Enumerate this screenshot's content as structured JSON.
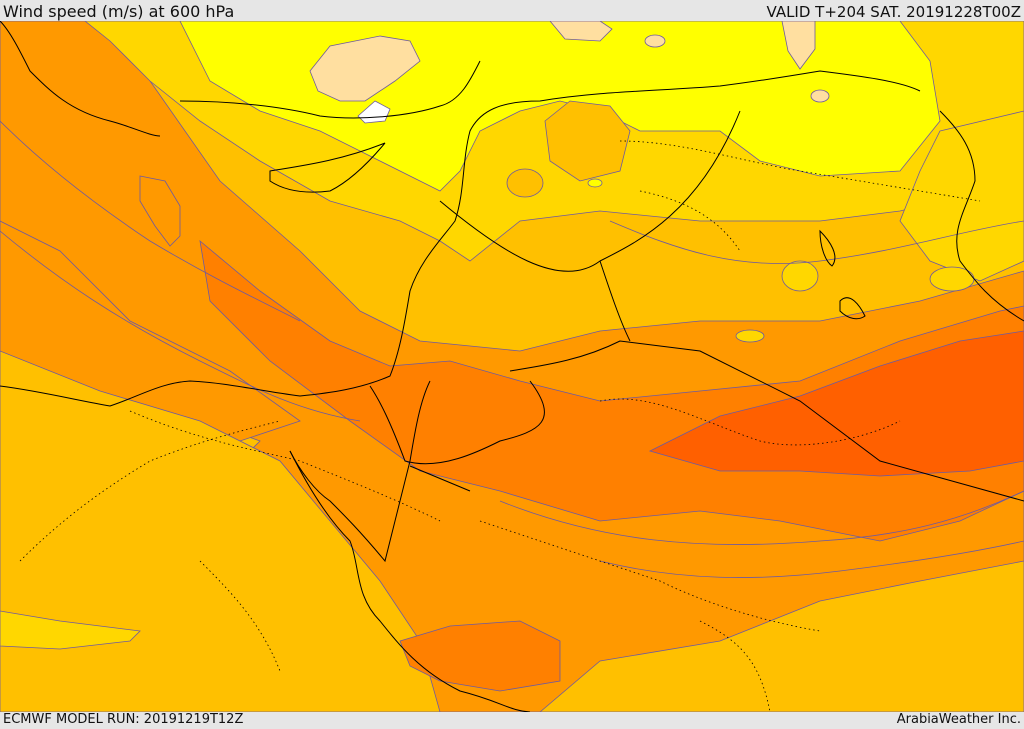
{
  "header": {
    "title": "Wind speed (m/s) at 600 hPa",
    "valid": "VALID T+204 SAT. 20191228T00Z"
  },
  "footer": {
    "model_run": "ECMWF MODEL RUN: 20191219T12Z",
    "credit": "ArabiaWeather Inc."
  },
  "colors": {
    "very_light": "#ffdfa0",
    "light_yellow": "#ffff00",
    "yellow_gold": "#ffd700",
    "gold": "#ffc000",
    "orange_light": "#ff9900",
    "orange": "#ff8000",
    "orange_dark": "#ff6000",
    "contour": "#6e5aa0",
    "coast": "#000000"
  }
}
